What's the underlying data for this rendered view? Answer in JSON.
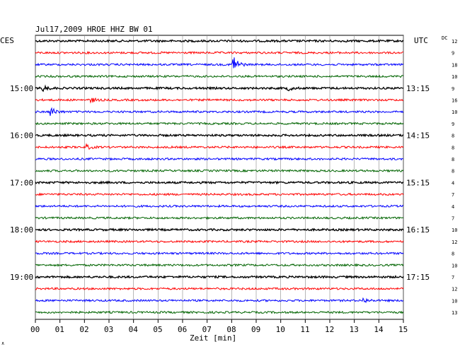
{
  "chart_data": {
    "type": "line",
    "title": "Jul17,2009   HROE HHZ BW 01",
    "left_timezone": "CES",
    "right_timezone": "UTC",
    "xlabel": "Zeit [min]",
    "xlim": [
      0,
      15
    ],
    "x_ticks": [
      "00",
      "01",
      "02",
      "03",
      "04",
      "05",
      "06",
      "07",
      "08",
      "09",
      "10",
      "11",
      "12",
      "13",
      "14",
      "15"
    ],
    "grid": true,
    "corner_label": "DC",
    "footer_mark": "∧",
    "left_time_labels": [
      {
        "row": 4,
        "label": "15:00"
      },
      {
        "row": 8,
        "label": "16:00"
      },
      {
        "row": 12,
        "label": "17:00"
      },
      {
        "row": 16,
        "label": "18:00"
      },
      {
        "row": 20,
        "label": "19:00"
      }
    ],
    "right_time_labels": [
      {
        "row": 4,
        "label": "13:15"
      },
      {
        "row": 8,
        "label": "14:15"
      },
      {
        "row": 12,
        "label": "15:15"
      },
      {
        "row": 16,
        "label": "16:15"
      },
      {
        "row": 20,
        "label": "17:15"
      }
    ],
    "trace_colors": [
      "#000000",
      "#ff0000",
      "#0000ff",
      "#006400"
    ],
    "dc_values": [
      "12",
      "9",
      "18",
      "10",
      "9",
      "16",
      "10",
      "9",
      "8",
      "8",
      "8",
      "8",
      "4",
      "7",
      "4",
      "7",
      "10",
      "12",
      "8",
      "10",
      "7",
      "12",
      "10",
      "13"
    ],
    "events": [
      {
        "row": 2,
        "minute": 8.05,
        "amplitude": 16
      },
      {
        "row": 4,
        "minute": 0.3,
        "amplitude": 4
      },
      {
        "row": 5,
        "minute": 2.3,
        "amplitude": 3
      },
      {
        "row": 6,
        "minute": 0.65,
        "amplitude": 6
      },
      {
        "row": 9,
        "minute": 2.1,
        "amplitude": 3
      },
      {
        "row": 4,
        "minute": 10.3,
        "amplitude": 3
      },
      {
        "row": 22,
        "minute": 13.4,
        "amplitude": 3
      }
    ]
  }
}
